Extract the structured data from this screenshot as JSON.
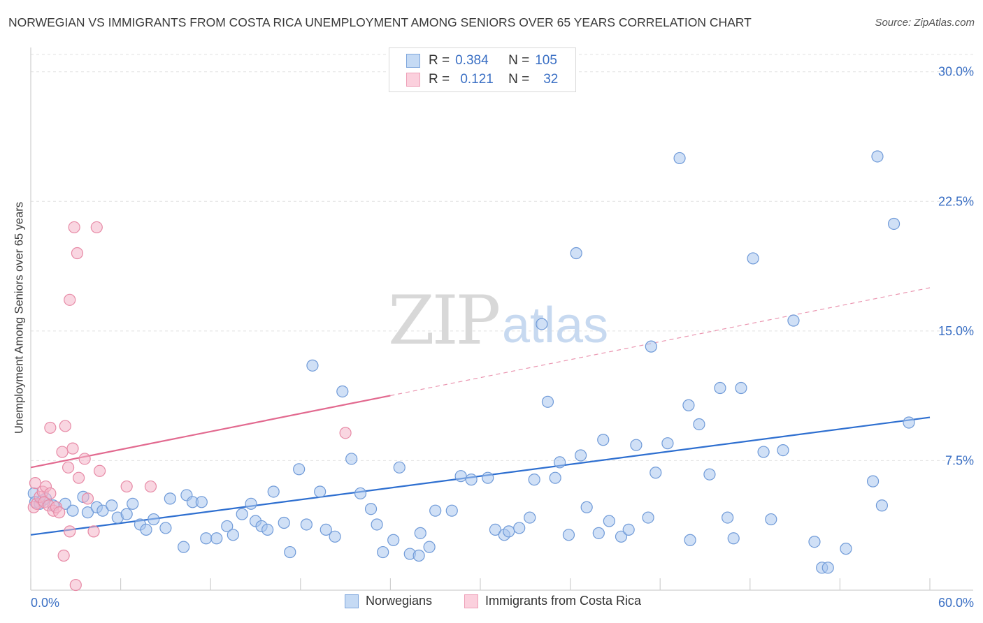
{
  "header": {
    "title": "NORWEGIAN VS IMMIGRANTS FROM COSTA RICA UNEMPLOYMENT AMONG SENIORS OVER 65 YEARS CORRELATION CHART",
    "source": "Source: ZipAtlas.com"
  },
  "watermark": {
    "zip": "ZIP",
    "atlas": "atlas"
  },
  "legend": {
    "rows": [
      {
        "r_label": "R =",
        "r_value": "0.384",
        "n_label": "N =",
        "n_value": "105",
        "color": "#a9c7ee"
      },
      {
        "r_label": "R =",
        "r_value": "0.121",
        "n_label": "N =",
        "n_value": "32",
        "color": "#f4b4c8"
      }
    ]
  },
  "chart_data": {
    "type": "scatter",
    "title": "NORWEGIAN VS IMMIGRANTS FROM COSTA RICA UNEMPLOYMENT AMONG SENIORS OVER 65 YEARS CORRELATION CHART",
    "xlabel": "",
    "ylabel": "Unemployment Among Seniors over 65 years",
    "xlim": [
      0,
      60
    ],
    "ylim": [
      0,
      31
    ],
    "x_tick_labels": [
      "0.0%",
      "60.0%"
    ],
    "y_ticks": [
      7.5,
      15.0,
      22.5,
      30.0
    ],
    "y_tick_labels": [
      "7.5%",
      "15.0%",
      "22.5%",
      "30.0%"
    ],
    "grid": true,
    "legend_position": "top-center",
    "series": [
      {
        "name": "Norwegians",
        "color": "#a9c7ee",
        "stroke": "#6f9ad8",
        "trend": {
          "x0": 0,
          "y0": 3.2,
          "x1": 60,
          "y1": 10.0,
          "color": "#2e6fd0",
          "dashed_from": null
        },
        "points": [
          [
            0.2,
            5.6
          ],
          [
            0.3,
            5.1
          ],
          [
            0.6,
            5.0
          ],
          [
            0.8,
            5.2
          ],
          [
            1.0,
            5.3
          ],
          [
            1.5,
            4.9
          ],
          [
            2.3,
            5.0
          ],
          [
            2.8,
            4.6
          ],
          [
            3.5,
            5.4
          ],
          [
            3.8,
            4.5
          ],
          [
            4.4,
            4.8
          ],
          [
            4.8,
            4.6
          ],
          [
            5.4,
            4.9
          ],
          [
            5.8,
            4.2
          ],
          [
            6.4,
            4.4
          ],
          [
            6.8,
            5.0
          ],
          [
            7.3,
            3.8
          ],
          [
            7.7,
            3.5
          ],
          [
            8.2,
            4.1
          ],
          [
            9.0,
            3.6
          ],
          [
            9.3,
            5.3
          ],
          [
            10.2,
            2.5
          ],
          [
            10.4,
            5.5
          ],
          [
            10.8,
            5.1
          ],
          [
            11.4,
            5.1
          ],
          [
            11.7,
            3.0
          ],
          [
            12.4,
            3.0
          ],
          [
            13.1,
            3.7
          ],
          [
            13.5,
            3.2
          ],
          [
            14.1,
            4.4
          ],
          [
            14.7,
            5.0
          ],
          [
            15.0,
            4.0
          ],
          [
            15.4,
            3.7
          ],
          [
            15.8,
            3.5
          ],
          [
            16.2,
            5.7
          ],
          [
            16.9,
            3.9
          ],
          [
            17.3,
            2.2
          ],
          [
            17.9,
            7.0
          ],
          [
            18.4,
            3.8
          ],
          [
            19.3,
            5.7
          ],
          [
            18.8,
            13.0
          ],
          [
            19.7,
            3.5
          ],
          [
            20.3,
            3.1
          ],
          [
            20.8,
            11.5
          ],
          [
            21.4,
            7.6
          ],
          [
            22.0,
            5.6
          ],
          [
            22.7,
            4.7
          ],
          [
            23.1,
            3.8
          ],
          [
            23.5,
            2.2
          ],
          [
            24.2,
            2.9
          ],
          [
            24.6,
            7.1
          ],
          [
            25.3,
            2.1
          ],
          [
            26.0,
            3.3
          ],
          [
            25.9,
            2.0
          ],
          [
            26.6,
            2.5
          ],
          [
            27.0,
            4.6
          ],
          [
            28.1,
            4.6
          ],
          [
            28.7,
            6.6
          ],
          [
            29.4,
            6.4
          ],
          [
            30.5,
            6.5
          ],
          [
            31.0,
            3.5
          ],
          [
            31.6,
            3.2
          ],
          [
            31.9,
            3.4
          ],
          [
            32.6,
            3.6
          ],
          [
            33.3,
            4.2
          ],
          [
            33.6,
            6.4
          ],
          [
            34.1,
            15.4
          ],
          [
            34.5,
            10.9
          ],
          [
            35.0,
            6.5
          ],
          [
            35.3,
            7.4
          ],
          [
            35.9,
            3.2
          ],
          [
            36.7,
            7.8
          ],
          [
            36.4,
            19.5
          ],
          [
            37.1,
            4.8
          ],
          [
            37.9,
            3.3
          ],
          [
            38.2,
            8.7
          ],
          [
            38.6,
            4.0
          ],
          [
            39.4,
            3.1
          ],
          [
            39.9,
            3.5
          ],
          [
            40.4,
            8.4
          ],
          [
            41.2,
            4.2
          ],
          [
            41.7,
            6.8
          ],
          [
            41.4,
            14.1
          ],
          [
            42.5,
            8.5
          ],
          [
            43.3,
            25.0
          ],
          [
            43.9,
            10.7
          ],
          [
            44.0,
            2.9
          ],
          [
            44.6,
            9.6
          ],
          [
            45.3,
            6.7
          ],
          [
            46.0,
            11.7
          ],
          [
            46.5,
            4.2
          ],
          [
            46.9,
            3.0
          ],
          [
            47.4,
            11.7
          ],
          [
            48.2,
            19.2
          ],
          [
            48.9,
            8.0
          ],
          [
            49.4,
            4.1
          ],
          [
            50.2,
            8.1
          ],
          [
            50.9,
            15.6
          ],
          [
            52.3,
            2.8
          ],
          [
            52.8,
            1.3
          ],
          [
            53.2,
            1.3
          ],
          [
            54.4,
            2.4
          ],
          [
            56.2,
            6.3
          ],
          [
            56.5,
            25.1
          ],
          [
            56.8,
            4.9
          ],
          [
            57.6,
            21.2
          ],
          [
            58.6,
            9.7
          ]
        ]
      },
      {
        "name": "Immigrants from Costa Rica",
        "color": "#f4b4c8",
        "stroke": "#e78aa6",
        "trend": {
          "x0": 0,
          "y0": 7.1,
          "x1": 60,
          "y1": 17.5,
          "color": "#e2698f",
          "dashed_from": 24
        },
        "points": [
          [
            0.2,
            4.8
          ],
          [
            0.3,
            6.2
          ],
          [
            0.4,
            5.0
          ],
          [
            0.6,
            5.4
          ],
          [
            0.8,
            5.7
          ],
          [
            0.9,
            5.1
          ],
          [
            1.0,
            6.0
          ],
          [
            1.2,
            4.9
          ],
          [
            1.3,
            5.6
          ],
          [
            1.5,
            4.6
          ],
          [
            1.7,
            4.8
          ],
          [
            1.9,
            4.5
          ],
          [
            1.3,
            9.4
          ],
          [
            2.1,
            8.0
          ],
          [
            2.3,
            9.5
          ],
          [
            2.5,
            7.1
          ],
          [
            2.6,
            3.4
          ],
          [
            2.6,
            16.8
          ],
          [
            2.8,
            8.2
          ],
          [
            2.9,
            21.0
          ],
          [
            3.0,
            0.3
          ],
          [
            3.1,
            19.5
          ],
          [
            3.2,
            6.5
          ],
          [
            3.6,
            7.6
          ],
          [
            3.8,
            5.3
          ],
          [
            4.2,
            3.4
          ],
          [
            4.4,
            21.0
          ],
          [
            4.6,
            6.9
          ],
          [
            6.4,
            6.0
          ],
          [
            8.0,
            6.0
          ],
          [
            21.0,
            9.1
          ],
          [
            2.2,
            2.0
          ]
        ]
      }
    ]
  },
  "bottom_legend": {
    "items": [
      {
        "label": "Norwegians",
        "color": "#a9c7ee",
        "stroke": "#6f9ad8"
      },
      {
        "label": "Immigrants from Costa Rica",
        "color": "#f4b4c8",
        "stroke": "#e78aa6"
      }
    ]
  }
}
